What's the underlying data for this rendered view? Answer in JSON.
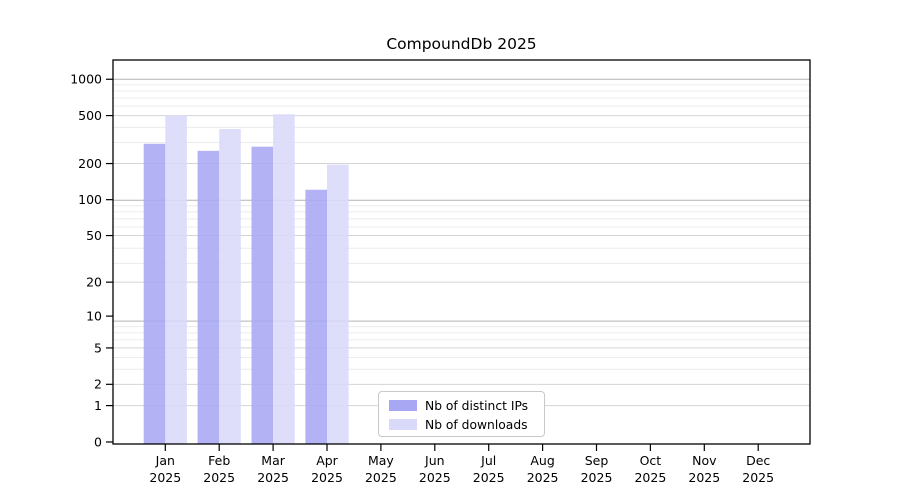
{
  "chart_data": {
    "type": "bar",
    "title": "CompoundDb 2025",
    "categories": [
      "Jan",
      "Feb",
      "Mar",
      "Apr",
      "May",
      "Jun",
      "Jul",
      "Aug",
      "Sep",
      "Oct",
      "Nov",
      "Dec"
    ],
    "category_year": "2025",
    "series": [
      {
        "name": "Nb of distinct IPs",
        "color": "#a7a7f4",
        "values": [
          292,
          255,
          276,
          121,
          null,
          null,
          null,
          null,
          null,
          null,
          null,
          null
        ]
      },
      {
        "name": "Nb of downloads",
        "color": "#d9d9fa",
        "values": [
          500,
          387,
          512,
          196,
          null,
          null,
          null,
          null,
          null,
          null,
          null,
          null
        ]
      }
    ],
    "y_ticks": [
      0,
      1,
      2,
      5,
      10,
      20,
      50,
      100,
      200,
      500,
      1000
    ],
    "y_scale": "symlog (position proportional to log10(value+1))",
    "ylim": [
      0,
      1445
    ],
    "xlabel": "",
    "ylabel": "",
    "grid": "horizontal major and minor gridlines",
    "legend_position": "inside plot, bottom, left of center",
    "colors": {
      "axis_frame": "#000000",
      "major_gridline": "#b3b3b3",
      "tick_gridline": "#d4d4d4",
      "minor_gridline": "#ececec",
      "tick_text": "#000000"
    }
  }
}
